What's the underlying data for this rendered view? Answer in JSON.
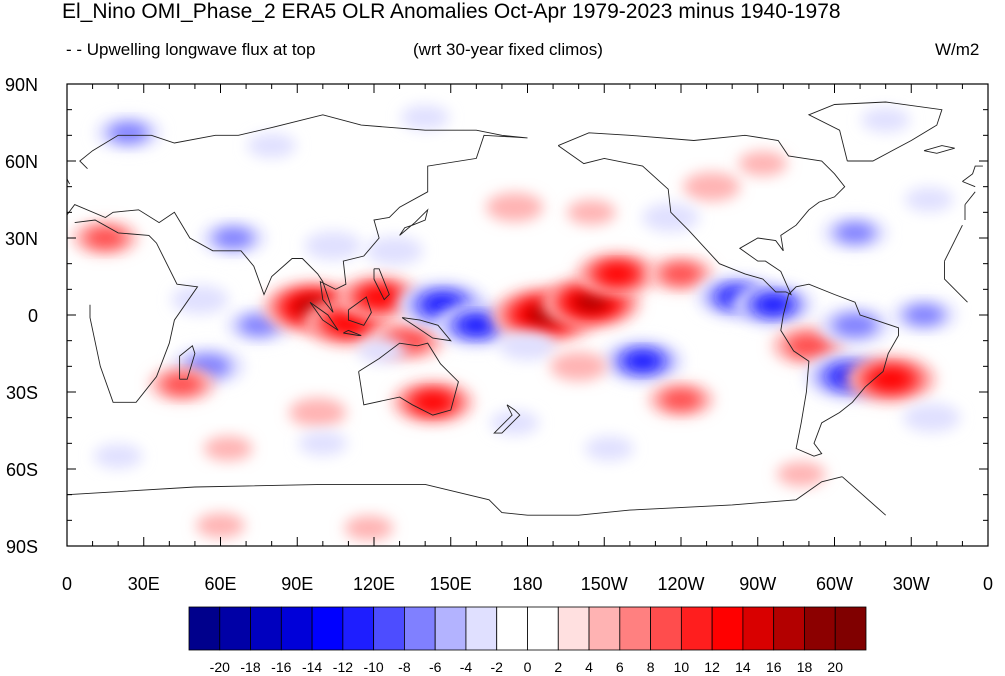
{
  "header": {
    "title": "El_Nino OMI_Phase_2 ERA5 OLR Anomalies Oct-Apr 1979-2023 minus 1940-1978",
    "left_label": "- - Upwelling longwave flux at top",
    "center_label": "(wrt 30-year fixed climos)",
    "units": "W/m2"
  },
  "map": {
    "lat_ticks": [
      "90N",
      "60N",
      "30N",
      "0",
      "30S",
      "60S",
      "90S"
    ],
    "lon_ticks": [
      "0",
      "30E",
      "60E",
      "90E",
      "120E",
      "150E",
      "180",
      "150W",
      "120W",
      "90W",
      "60W",
      "30W",
      "0"
    ],
    "coastline_color": "#222222",
    "anomaly_blobs": [
      {
        "lon": 24,
        "lat": 71,
        "value": -8
      },
      {
        "lon": 80,
        "lat": 66,
        "value": -4
      },
      {
        "lon": 140,
        "lat": 77,
        "value": -4
      },
      {
        "lon": 320,
        "lat": 76,
        "value": -4
      },
      {
        "lon": 252,
        "lat": 50,
        "value": 6
      },
      {
        "lon": 272,
        "lat": 59,
        "value": 4
      },
      {
        "lon": 175,
        "lat": 42,
        "value": 6
      },
      {
        "lon": 205,
        "lat": 40,
        "value": 4
      },
      {
        "lon": 236,
        "lat": 38,
        "value": -6
      },
      {
        "lon": 308,
        "lat": 32,
        "value": -8
      },
      {
        "lon": 337,
        "lat": 45,
        "value": -4
      },
      {
        "lon": 15,
        "lat": 30,
        "value": 8
      },
      {
        "lon": 65,
        "lat": 30,
        "value": -8
      },
      {
        "lon": 104,
        "lat": 27,
        "value": -6
      },
      {
        "lon": 128,
        "lat": 25,
        "value": -6
      },
      {
        "lon": 52,
        "lat": 6,
        "value": -6
      },
      {
        "lon": 75,
        "lat": -4,
        "value": -8
      },
      {
        "lon": 96,
        "lat": 3,
        "value": 16
      },
      {
        "lon": 110,
        "lat": -3,
        "value": 14
      },
      {
        "lon": 122,
        "lat": 7,
        "value": 12
      },
      {
        "lon": 133,
        "lat": -10,
        "value": 10
      },
      {
        "lon": 123,
        "lat": -14,
        "value": -4
      },
      {
        "lon": 147,
        "lat": 4,
        "value": -14
      },
      {
        "lon": 160,
        "lat": -4,
        "value": -12
      },
      {
        "lon": 187,
        "lat": 0,
        "value": 18
      },
      {
        "lon": 205,
        "lat": 5,
        "value": 16
      },
      {
        "lon": 215,
        "lat": 16,
        "value": 12
      },
      {
        "lon": 225,
        "lat": -18,
        "value": -12
      },
      {
        "lon": 240,
        "lat": 16,
        "value": 8
      },
      {
        "lon": 262,
        "lat": 7,
        "value": -12
      },
      {
        "lon": 276,
        "lat": 4,
        "value": -12
      },
      {
        "lon": 290,
        "lat": -12,
        "value": 10
      },
      {
        "lon": 308,
        "lat": -4,
        "value": -10
      },
      {
        "lon": 335,
        "lat": 0,
        "value": -8
      },
      {
        "lon": 306,
        "lat": -24,
        "value": -14
      },
      {
        "lon": 322,
        "lat": -25,
        "value": 14
      },
      {
        "lon": 338,
        "lat": -40,
        "value": -6
      },
      {
        "lon": 180,
        "lat": -12,
        "value": -6
      },
      {
        "lon": 200,
        "lat": -20,
        "value": 6
      },
      {
        "lon": 143,
        "lat": -34,
        "value": 12
      },
      {
        "lon": 98,
        "lat": -38,
        "value": 6
      },
      {
        "lon": 55,
        "lat": -20,
        "value": -10
      },
      {
        "lon": 45,
        "lat": -27,
        "value": 8
      },
      {
        "lon": 240,
        "lat": -33,
        "value": 8
      },
      {
        "lon": 175,
        "lat": -42,
        "value": -4
      },
      {
        "lon": 212,
        "lat": -52,
        "value": -4
      },
      {
        "lon": 100,
        "lat": -50,
        "value": -4
      },
      {
        "lon": 63,
        "lat": -52,
        "value": 4
      },
      {
        "lon": 20,
        "lat": -55,
        "value": -4
      },
      {
        "lon": 287,
        "lat": -62,
        "value": 4
      },
      {
        "lon": 60,
        "lat": -82,
        "value": 4
      },
      {
        "lon": 118,
        "lat": -83,
        "value": 4
      }
    ]
  },
  "colorbar": {
    "labels": [
      "-20",
      "-18",
      "-16",
      "-14",
      "-12",
      "-10",
      "-8",
      "-6",
      "-4",
      "-2",
      "0",
      "2",
      "4",
      "6",
      "8",
      "10",
      "12",
      "14",
      "16",
      "18",
      "20"
    ],
    "colors": [
      "#00008c",
      "#0000a6",
      "#0000bf",
      "#0000d9",
      "#0000ff",
      "#1e1eff",
      "#4d4dff",
      "#8080ff",
      "#b3b3ff",
      "#e0e0ff",
      "#ffffff",
      "#ffffff",
      "#ffe0e0",
      "#ffb3b3",
      "#ff8080",
      "#ff4d4d",
      "#ff1e1e",
      "#ff0000",
      "#d90000",
      "#b30000",
      "#8c0000",
      "#800000"
    ]
  }
}
